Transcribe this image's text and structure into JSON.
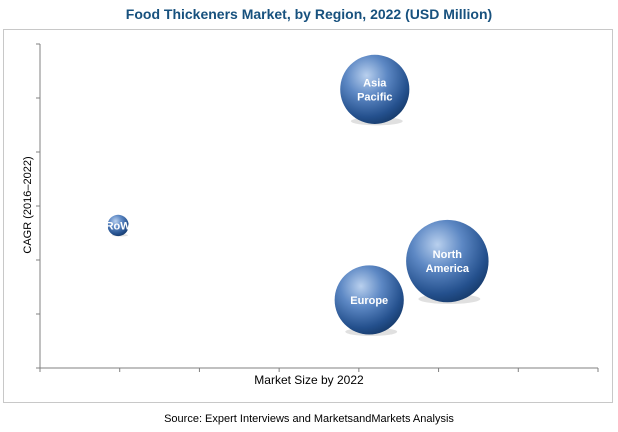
{
  "source": "Source: Expert Interviews and MarketsandMarkets Analysis",
  "colors": {
    "title": "#17517e",
    "bubble_light": "#a9c4e8",
    "bubble_mid": "#4a78b8",
    "bubble_dark": "#163a6a",
    "axis": "#808080"
  },
  "chart_data": {
    "type": "scatter",
    "title": "Food Thickeners Market, by Region, 2022 (USD Million)",
    "xlabel": "Market Size by 2022",
    "ylabel": "CAGR (2016–2022)",
    "xlim": [
      0,
      10
    ],
    "ylim": [
      0,
      10
    ],
    "x_ticks": 7,
    "y_ticks": 6,
    "grid": false,
    "series": [
      {
        "points": [
          {
            "label": "RoW",
            "x": 1.4,
            "y": 4.4,
            "size": 0.8
          },
          {
            "label": "Asia Pacific",
            "x": 6.0,
            "y": 8.6,
            "size": 2.6
          },
          {
            "label": "North America",
            "x": 7.3,
            "y": 3.3,
            "size": 3.1
          },
          {
            "label": "Europe",
            "x": 5.9,
            "y": 2.1,
            "size": 2.6
          }
        ]
      }
    ]
  }
}
